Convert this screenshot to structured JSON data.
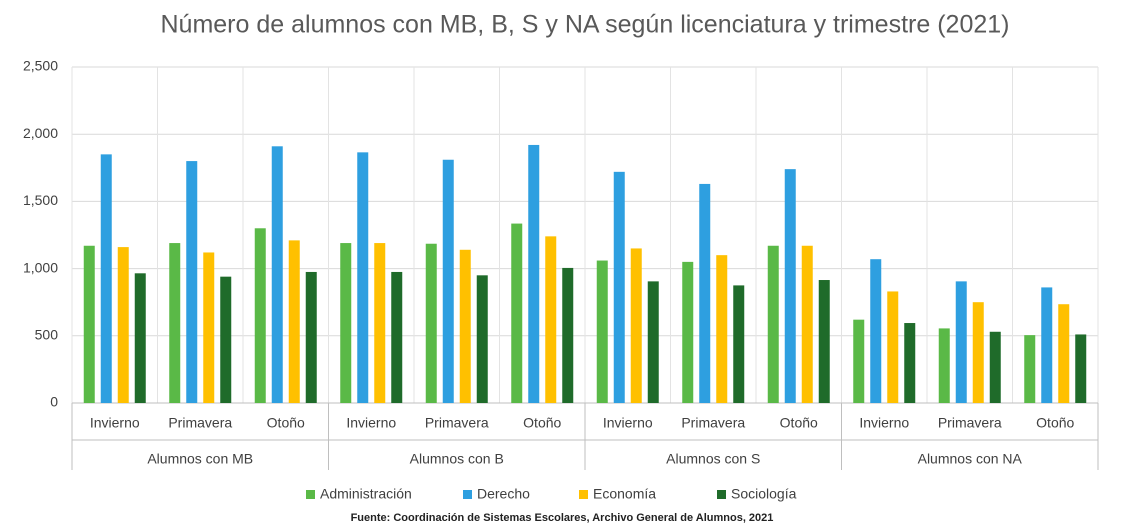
{
  "chart_data": {
    "type": "bar",
    "title": "Número de alumnos con MB, B, S y NA según licenciatura y trimestre (2021)",
    "source": "Fuente: Coordinación de Sistemas Escolares, Archivo General de Alumnos, 2021",
    "categories": [
      "Invierno",
      "Primavera",
      "Otoño",
      "Invierno",
      "Primavera",
      "Otoño",
      "Invierno",
      "Primavera",
      "Otoño",
      "Invierno",
      "Primavera",
      "Otoño"
    ],
    "groups": [
      "Alumnos con MB",
      "Alumnos con B",
      "Alumnos con S",
      "Alumnos con NA"
    ],
    "series": [
      {
        "name": "Administración",
        "color": "#5ab947",
        "values": [
          1170,
          1190,
          1300,
          1190,
          1185,
          1335,
          1060,
          1050,
          1170,
          620,
          555,
          505
        ]
      },
      {
        "name": "Derecho",
        "color": "#2e9fe0",
        "values": [
          1850,
          1800,
          1910,
          1865,
          1810,
          1920,
          1720,
          1630,
          1740,
          1070,
          905,
          860
        ]
      },
      {
        "name": "Economía",
        "color": "#ffc000",
        "values": [
          1160,
          1120,
          1210,
          1190,
          1140,
          1240,
          1150,
          1100,
          1170,
          830,
          750,
          735
        ]
      },
      {
        "name": "Sociología",
        "color": "#1f6b2a",
        "values": [
          965,
          940,
          975,
          975,
          950,
          1005,
          905,
          875,
          915,
          595,
          530,
          510
        ]
      }
    ],
    "ylim": [
      0,
      2500
    ],
    "yticks": [
      0,
      500,
      {
        "value": 1000,
        "label": "1,000"
      },
      {
        "value": 1500,
        "label": "1,500"
      },
      {
        "value": 2000,
        "label": "2,000"
      },
      {
        "value": 2500,
        "label": "2,500"
      }
    ],
    "grid": true
  }
}
